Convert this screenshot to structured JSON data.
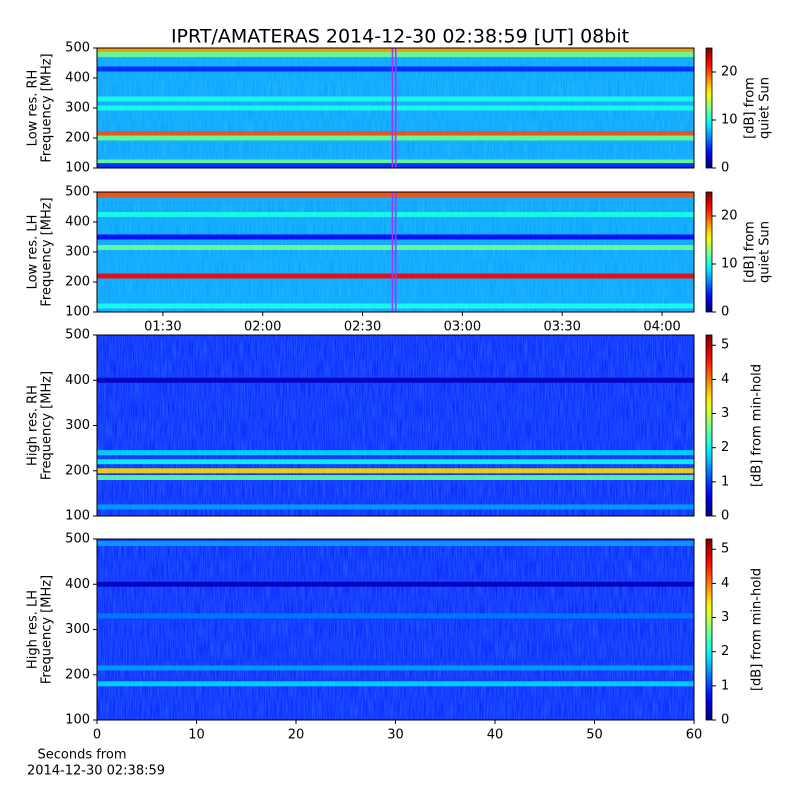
{
  "chart_data": [
    {
      "type": "heatmap",
      "title": "IPRT/AMATERAS 2014-12-30 02:38:59 [UT]   08bit",
      "ylabel": [
        "Low res. RH",
        "Frequency [MHz]"
      ],
      "ylim": [
        100,
        500
      ],
      "yticks": [
        100,
        200,
        300,
        400,
        500
      ],
      "xlim": [
        70.2,
        249.6
      ],
      "window": [
        158.98,
        159.98
      ],
      "window_color": "#b030ff",
      "background": 7,
      "band_freqs": [
        490,
        478,
        430,
        330,
        300,
        215,
        200,
        120,
        108
      ],
      "band_values": [
        18,
        12,
        4,
        10,
        10,
        20,
        12,
        12,
        4
      ],
      "clim": [
        0,
        25
      ],
      "cticks": [
        0,
        10,
        20
      ],
      "clabel": [
        "[dB] from",
        "quiet Sun"
      ]
    },
    {
      "type": "heatmap",
      "ylabel": [
        "Low res. LH",
        "Frequency [MHz]"
      ],
      "ylim": [
        100,
        500
      ],
      "yticks": [
        100,
        200,
        300,
        400,
        500
      ],
      "xlim": [
        70.2,
        249.6
      ],
      "xticks": [
        {
          "value": 90,
          "label": "01:30"
        },
        {
          "value": 120,
          "label": "02:00"
        },
        {
          "value": 150,
          "label": "02:30"
        },
        {
          "value": 180,
          "label": "03:00"
        },
        {
          "value": 210,
          "label": "03:30"
        },
        {
          "value": 240,
          "label": "04:00"
        }
      ],
      "window": [
        158.98,
        159.98
      ],
      "window_color": "#b030ff",
      "background": 7,
      "band_freqs": [
        490,
        425,
        350,
        315,
        220,
        120
      ],
      "band_values": [
        20,
        10,
        3,
        12,
        22,
        10
      ],
      "clim": [
        0,
        25
      ],
      "cticks": [
        0,
        10,
        20
      ],
      "clabel": [
        "[dB] from",
        "quiet Sun"
      ]
    },
    {
      "type": "heatmap",
      "ylabel": [
        "High res. RH",
        "Frequency [MHz]"
      ],
      "ylim": [
        100,
        500
      ],
      "yticks": [
        100,
        200,
        300,
        400,
        500
      ],
      "xlim": [
        0,
        60
      ],
      "background": 0.8,
      "band_freqs": [
        400,
        240,
        220,
        200,
        185,
        120
      ],
      "band_values": [
        0.3,
        1.8,
        2.0,
        3.5,
        2.5,
        1.5
      ],
      "clim": [
        0,
        5.3
      ],
      "cticks": [
        0,
        1,
        2,
        3,
        4,
        5
      ],
      "clabel": [
        "[dB] from min-hold"
      ]
    },
    {
      "type": "heatmap",
      "ylabel": [
        "High res. LH",
        "Frequency [MHz]"
      ],
      "ylim": [
        100,
        500
      ],
      "yticks": [
        100,
        200,
        300,
        400,
        500
      ],
      "xlim": [
        0,
        60
      ],
      "xticks": [
        0,
        10,
        20,
        30,
        40,
        50,
        60
      ],
      "xlabel": [
        "Seconds from",
        "2014-12-30 02:38:59"
      ],
      "background": 0.8,
      "band_freqs": [
        490,
        400,
        330,
        215,
        180
      ],
      "band_values": [
        1.5,
        0.3,
        1.3,
        1.5,
        1.8
      ],
      "clim": [
        0,
        5.3
      ],
      "cticks": [
        0,
        1,
        2,
        3,
        4,
        5
      ],
      "clabel": [
        "[dB] from min-hold"
      ]
    }
  ]
}
